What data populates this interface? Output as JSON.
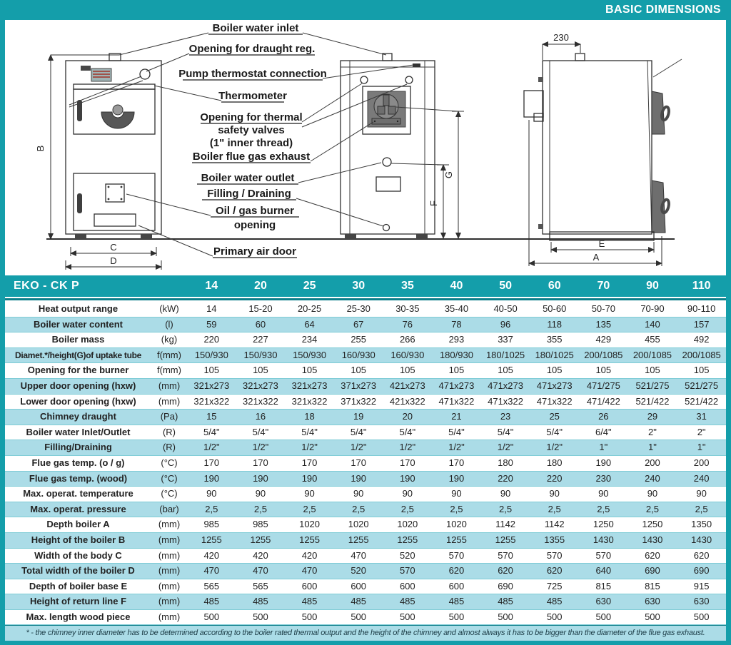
{
  "banner": {
    "title": "BASIC DIMENSIONS"
  },
  "colors": {
    "accent_teal": "#149EAA",
    "boiler_fill": "#20B2BE",
    "row_alt": "#ABDCE7",
    "header_rule": "#0C7E89",
    "drawing_gray": "#6E6E6E"
  },
  "diagram": {
    "callouts": {
      "water_inlet": "Boiler water inlet",
      "draught_reg": "Opening for draught reg.",
      "pump_thermostat": "Pump thermostat connection",
      "thermometer": "Thermometer",
      "thermal_valves_1": "Opening for thermal",
      "thermal_valves_2": "safety valves",
      "thermal_valves_3": "(1\" inner thread)",
      "flue_exhaust": "Boiler flue gas exhaust",
      "water_outlet": "Boiler water outlet",
      "filling_draining": "Filling / Draining",
      "burner_1": "Oil / gas burner",
      "burner_2": "opening",
      "primary_air": "Primary air door"
    },
    "dims": {
      "a": "A",
      "b": "B",
      "c": "C",
      "d": "D",
      "e": "E",
      "f": "F",
      "g": "G",
      "top_width": "230"
    }
  },
  "table": {
    "title": "EKO - CK P",
    "model_columns": [
      "14",
      "20",
      "25",
      "30",
      "35",
      "40",
      "50",
      "60",
      "70",
      "90",
      "110"
    ],
    "rows": [
      {
        "label": "Heat output range",
        "unit": "(kW)",
        "values": [
          "14",
          "15-20",
          "20-25",
          "25-30",
          "30-35",
          "35-40",
          "40-50",
          "50-60",
          "50-70",
          "70-90",
          "90-110"
        ]
      },
      {
        "label": "Boiler water content",
        "unit": "(l)",
        "values": [
          "59",
          "60",
          "64",
          "67",
          "76",
          "78",
          "96",
          "118",
          "135",
          "140",
          "157"
        ]
      },
      {
        "label": "Boiler mass",
        "unit": "(kg)",
        "values": [
          "220",
          "227",
          "234",
          "255",
          "266",
          "293",
          "337",
          "355",
          "429",
          "455",
          "492"
        ]
      },
      {
        "label": "Diamet.*/height(G)of uptake tube",
        "unit": "f(mm)",
        "values": [
          "150/930",
          "150/930",
          "150/930",
          "160/930",
          "160/930",
          "180/930",
          "180/1025",
          "180/1025",
          "200/1085",
          "200/1085",
          "200/1085"
        ]
      },
      {
        "label": "Opening for the burner",
        "unit": "f(mm)",
        "values": [
          "105",
          "105",
          "105",
          "105",
          "105",
          "105",
          "105",
          "105",
          "105",
          "105",
          "105"
        ]
      },
      {
        "label": "Upper door opening (hxw)",
        "unit": "(mm)",
        "values": [
          "321x273",
          "321x273",
          "321x273",
          "371x273",
          "421x273",
          "471x273",
          "471x273",
          "471x273",
          "471/275",
          "521/275",
          "521/275"
        ]
      },
      {
        "label": "Lower door opening (hxw)",
        "unit": "(mm)",
        "values": [
          "321x322",
          "321x322",
          "321x322",
          "371x322",
          "421x322",
          "471x322",
          "471x322",
          "471x322",
          "471/422",
          "521/422",
          "521/422"
        ]
      },
      {
        "label": "Chimney draught",
        "unit": "(Pa)",
        "values": [
          "15",
          "16",
          "18",
          "19",
          "20",
          "21",
          "23",
          "25",
          "26",
          "29",
          "31"
        ]
      },
      {
        "label": "Boiler water Inlet/Outlet",
        "unit": "(R)",
        "values": [
          "5/4\"",
          "5/4\"",
          "5/4\"",
          "5/4\"",
          "5/4\"",
          "5/4\"",
          "5/4\"",
          "5/4\"",
          "6/4\"",
          "2\"",
          "2\""
        ]
      },
      {
        "label": "Filling/Draining",
        "unit": "(R)",
        "values": [
          "1/2\"",
          "1/2\"",
          "1/2\"",
          "1/2\"",
          "1/2\"",
          "1/2\"",
          "1/2\"",
          "1/2\"",
          "1\"",
          "1\"",
          "1\""
        ]
      },
      {
        "label": "Flue gas temp. (o / g)",
        "unit": "(°C)",
        "values": [
          "170",
          "170",
          "170",
          "170",
          "170",
          "170",
          "180",
          "180",
          "190",
          "200",
          "200"
        ]
      },
      {
        "label": "Flue gas temp. (wood)",
        "unit": "(°C)",
        "values": [
          "190",
          "190",
          "190",
          "190",
          "190",
          "190",
          "220",
          "220",
          "230",
          "240",
          "240"
        ]
      },
      {
        "label": "Max. operat. temperature",
        "unit": "(°C)",
        "values": [
          "90",
          "90",
          "90",
          "90",
          "90",
          "90",
          "90",
          "90",
          "90",
          "90",
          "90"
        ]
      },
      {
        "label": "Max. operat. pressure",
        "unit": "(bar)",
        "values": [
          "2,5",
          "2,5",
          "2,5",
          "2,5",
          "2,5",
          "2,5",
          "2,5",
          "2,5",
          "2,5",
          "2,5",
          "2,5"
        ]
      },
      {
        "label": "Depth boiler A",
        "unit": "(mm)",
        "values": [
          "985",
          "985",
          "1020",
          "1020",
          "1020",
          "1020",
          "1142",
          "1142",
          "1250",
          "1250",
          "1350"
        ]
      },
      {
        "label": "Height of the boiler B",
        "unit": "(mm)",
        "values": [
          "1255",
          "1255",
          "1255",
          "1255",
          "1255",
          "1255",
          "1255",
          "1355",
          "1430",
          "1430",
          "1430"
        ]
      },
      {
        "label": "Width of the body C",
        "unit": "(mm)",
        "values": [
          "420",
          "420",
          "420",
          "470",
          "520",
          "570",
          "570",
          "570",
          "570",
          "620",
          "620"
        ]
      },
      {
        "label": "Total width of the boiler D",
        "unit": "(mm)",
        "values": [
          "470",
          "470",
          "470",
          "520",
          "570",
          "620",
          "620",
          "620",
          "640",
          "690",
          "690"
        ]
      },
      {
        "label": "Depth of boiler base  E",
        "unit": "(mm)",
        "values": [
          "565",
          "565",
          "600",
          "600",
          "600",
          "600",
          "690",
          "725",
          "815",
          "815",
          "915"
        ]
      },
      {
        "label": "Height of return line F",
        "unit": "(mm)",
        "values": [
          "485",
          "485",
          "485",
          "485",
          "485",
          "485",
          "485",
          "485",
          "630",
          "630",
          "630"
        ]
      },
      {
        "label": "Max. length wood piece",
        "unit": "(mm)",
        "values": [
          "500",
          "500",
          "500",
          "500",
          "500",
          "500",
          "500",
          "500",
          "500",
          "500",
          "500"
        ]
      }
    ]
  },
  "footnote": "* - the chimney inner diameter has to be determined according to the boiler rated thermal output and the height of the chimney and almost always it has to be bigger than the diameter of the flue gas exhaust."
}
